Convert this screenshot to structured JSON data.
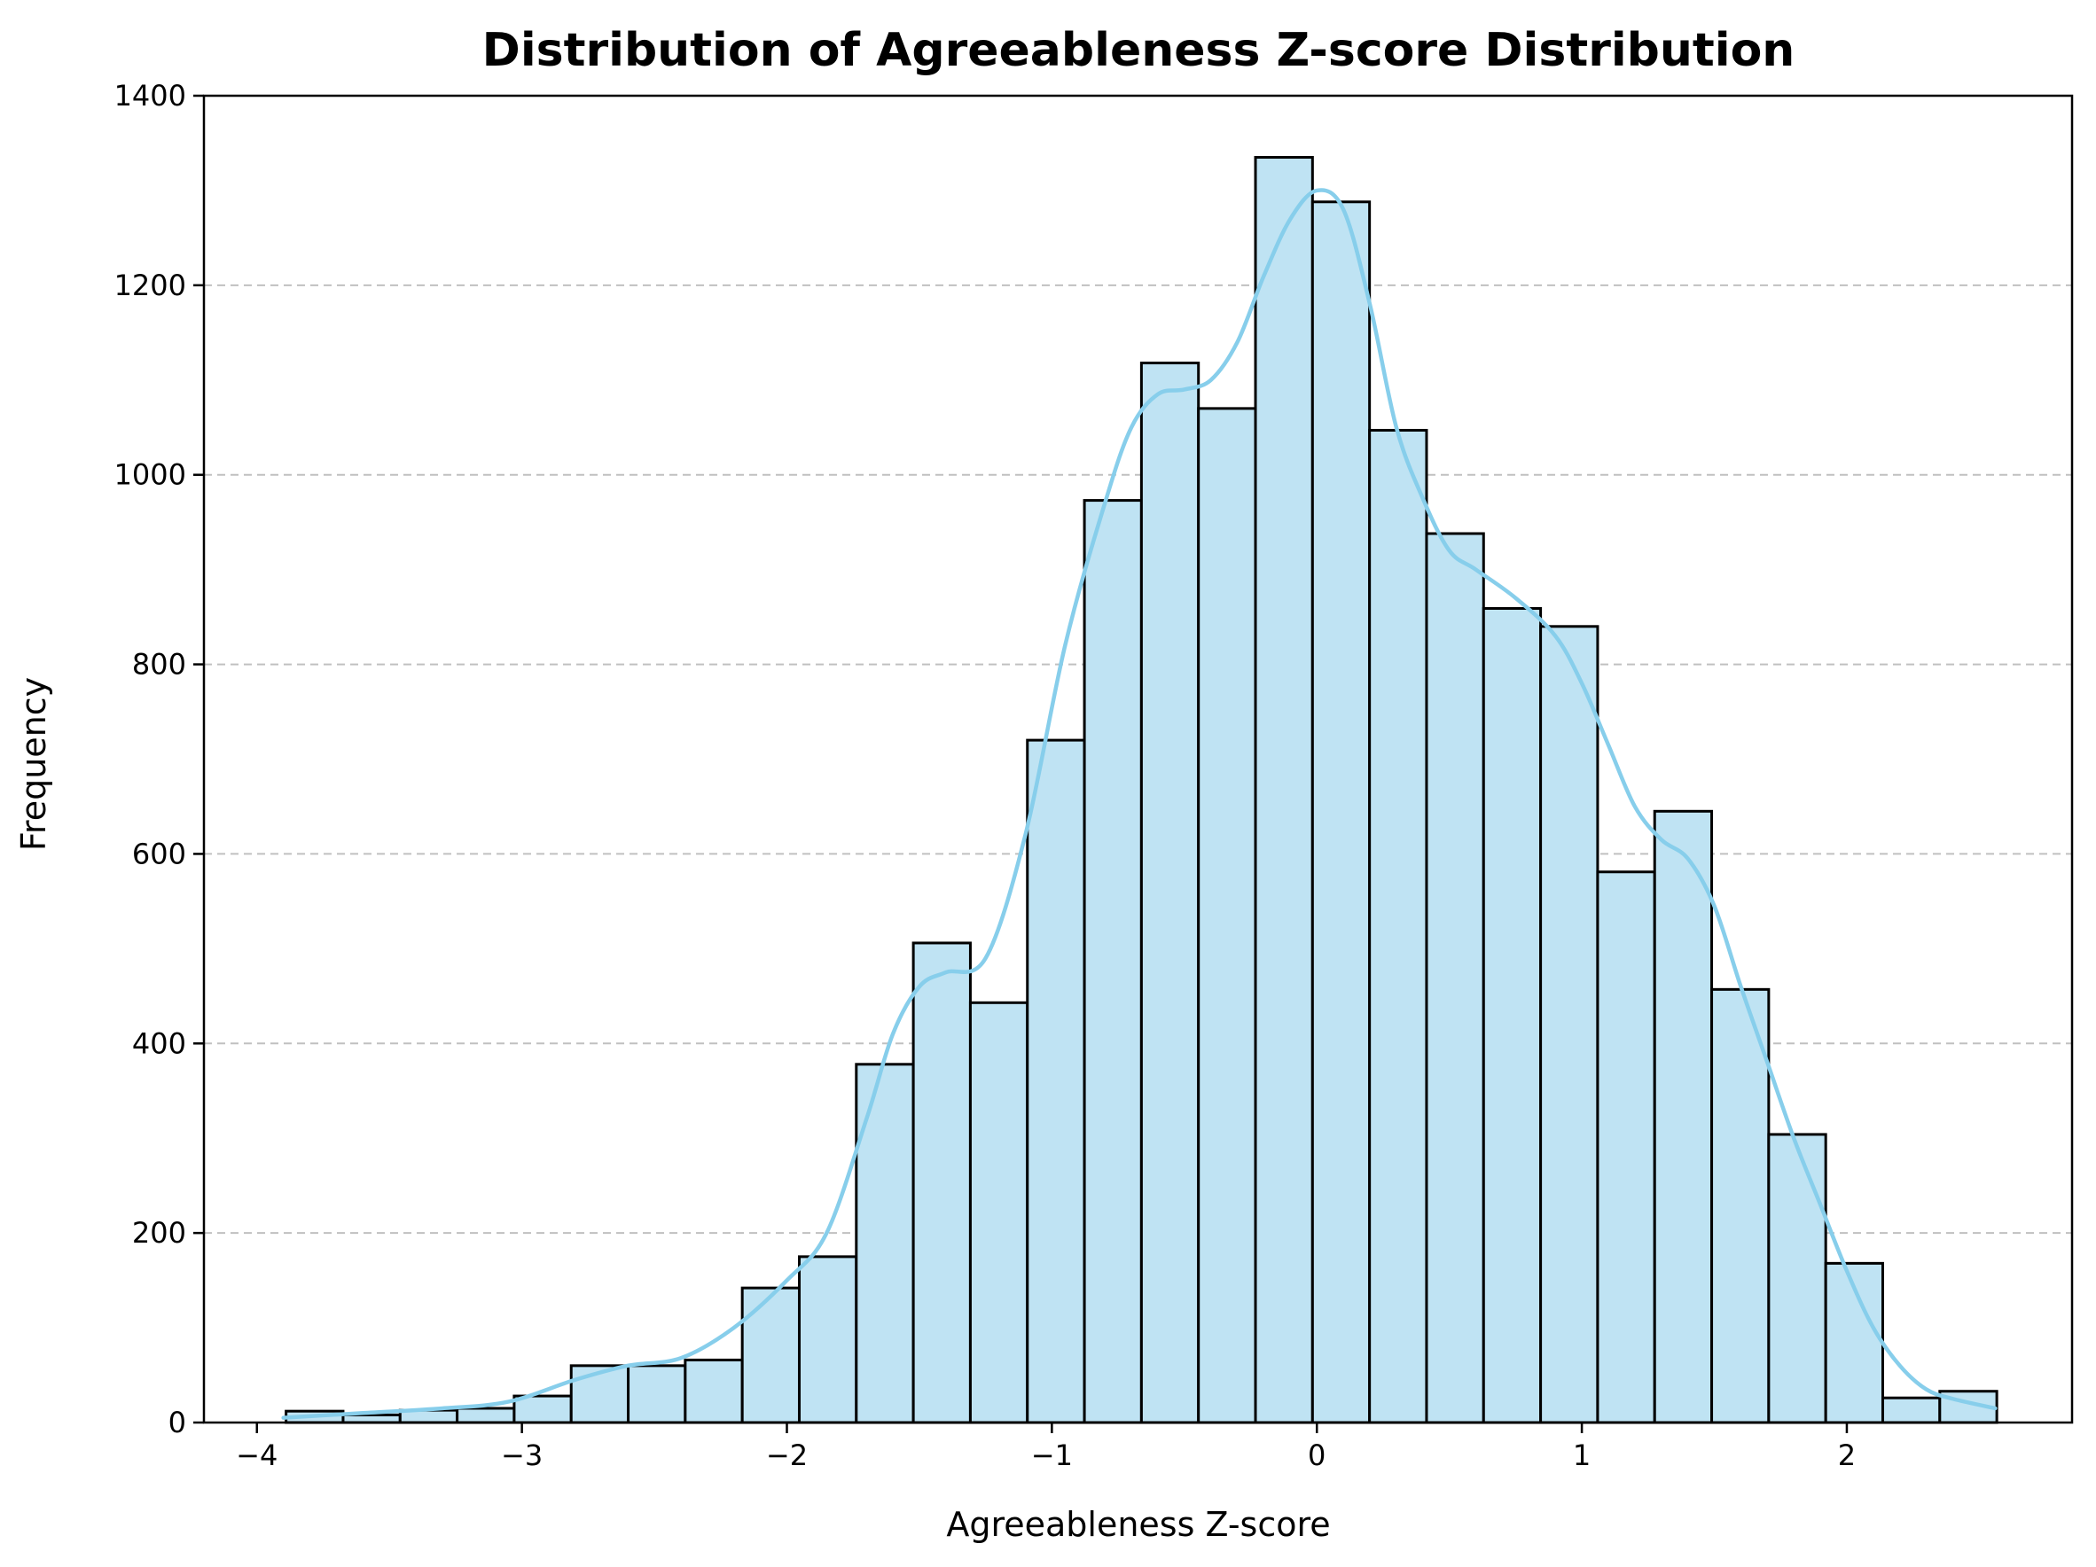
{
  "chart_data": {
    "type": "bar",
    "title": "Distribution of Agreeableness Z-score Distribution",
    "xlabel": "Agreeableness Z-score",
    "ylabel": "Frequency",
    "xlim": [
      -4.2,
      2.85
    ],
    "ylim": [
      0,
      1400
    ],
    "x_ticks": [
      {
        "value": -4,
        "label": "−4"
      },
      {
        "value": -3,
        "label": "−3"
      },
      {
        "value": -2,
        "label": "−2"
      },
      {
        "value": -1,
        "label": "−1"
      },
      {
        "value": 0,
        "label": "0"
      },
      {
        "value": 1,
        "label": "1"
      },
      {
        "value": 2,
        "label": "2"
      }
    ],
    "y_ticks": [
      {
        "value": 0,
        "label": "0"
      },
      {
        "value": 200,
        "label": "200"
      },
      {
        "value": 400,
        "label": "400"
      },
      {
        "value": 600,
        "label": "600"
      },
      {
        "value": 800,
        "label": "800"
      },
      {
        "value": 1000,
        "label": "1000"
      },
      {
        "value": 1200,
        "label": "1200"
      },
      {
        "value": 1400,
        "label": "1400"
      }
    ],
    "grid": "y-dashed",
    "bin_start": -3.89,
    "bin_width": 0.2152,
    "values": [
      12,
      8,
      13,
      15,
      28,
      60,
      60,
      66,
      142,
      175,
      378,
      506,
      443,
      720,
      973,
      1118,
      1070,
      1335,
      1288,
      1047,
      938,
      859,
      840,
      581,
      645,
      457,
      304,
      168,
      26,
      33
    ],
    "kde": {
      "x": [
        -3.9,
        -3.6,
        -3.3,
        -3.05,
        -2.8,
        -2.6,
        -2.4,
        -2.2,
        -2.0,
        -1.85,
        -1.7,
        -1.6,
        -1.5,
        -1.4,
        -1.25,
        -1.1,
        -0.95,
        -0.8,
        -0.7,
        -0.6,
        -0.5,
        -0.4,
        -0.3,
        -0.2,
        -0.1,
        0.0,
        0.1,
        0.2,
        0.3,
        0.4,
        0.5,
        0.6,
        0.75,
        0.9,
        1.0,
        1.1,
        1.2,
        1.3,
        1.4,
        1.5,
        1.6,
        1.7,
        1.8,
        1.9,
        2.0,
        2.1,
        2.2,
        2.3,
        2.4,
        2.56
      ],
      "y": [
        5,
        10,
        15,
        22,
        45,
        60,
        68,
        100,
        150,
        200,
        320,
        410,
        460,
        475,
        490,
        620,
        820,
        970,
        1050,
        1085,
        1090,
        1100,
        1140,
        1210,
        1270,
        1300,
        1280,
        1180,
        1050,
        975,
        920,
        900,
        870,
        830,
        780,
        715,
        650,
        615,
        595,
        545,
        460,
        380,
        300,
        230,
        160,
        100,
        60,
        35,
        25,
        15
      ]
    },
    "colors": {
      "bar_fill": "#bfe3f3",
      "bar_edge": "#000000",
      "kde_line": "#87ceeb",
      "grid": "#c0c0c0"
    }
  }
}
